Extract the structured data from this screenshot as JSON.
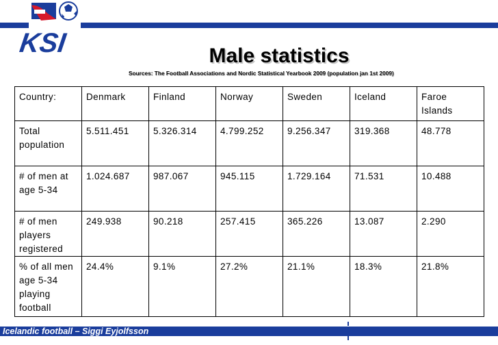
{
  "logo": {
    "text": "KSI",
    "colors": {
      "blue": "#1a3d9c",
      "red": "#d7192b",
      "white": "#ffffff"
    }
  },
  "title": "Male statistics",
  "subtitle": "Sources: The Football Associations and Nordic Statistical Yearbook 2009 (population jan 1st 2009)",
  "table": {
    "header": [
      "Country:",
      "Denmark",
      "Finland",
      "Norway",
      "Sweden",
      "Iceland",
      "Faroe Islands"
    ],
    "rows": [
      [
        "Total population",
        "5.511.451",
        "5.326.314",
        "4.799.252",
        "9.256.347",
        "319.368",
        "48.778"
      ],
      [
        "# of men at age 5-34",
        "1.024.687",
        "987.067",
        "945.115",
        "1.729.164",
        "71.531",
        "10.488"
      ],
      [
        "# of men players registered",
        "249.938",
        "90.218",
        "257.415",
        "365.226",
        "13.087",
        "2.290"
      ],
      [
        "% of all men age 5-34 playing football",
        "24.4%",
        "9.1%",
        "27.2%",
        "21.1%",
        "18.3%",
        "21.8%"
      ]
    ]
  },
  "footer": "Icelandic football – Siggi Eyjolfsson",
  "colors": {
    "accent": "#1a3d9c",
    "text": "#000000",
    "background": "#ffffff"
  }
}
